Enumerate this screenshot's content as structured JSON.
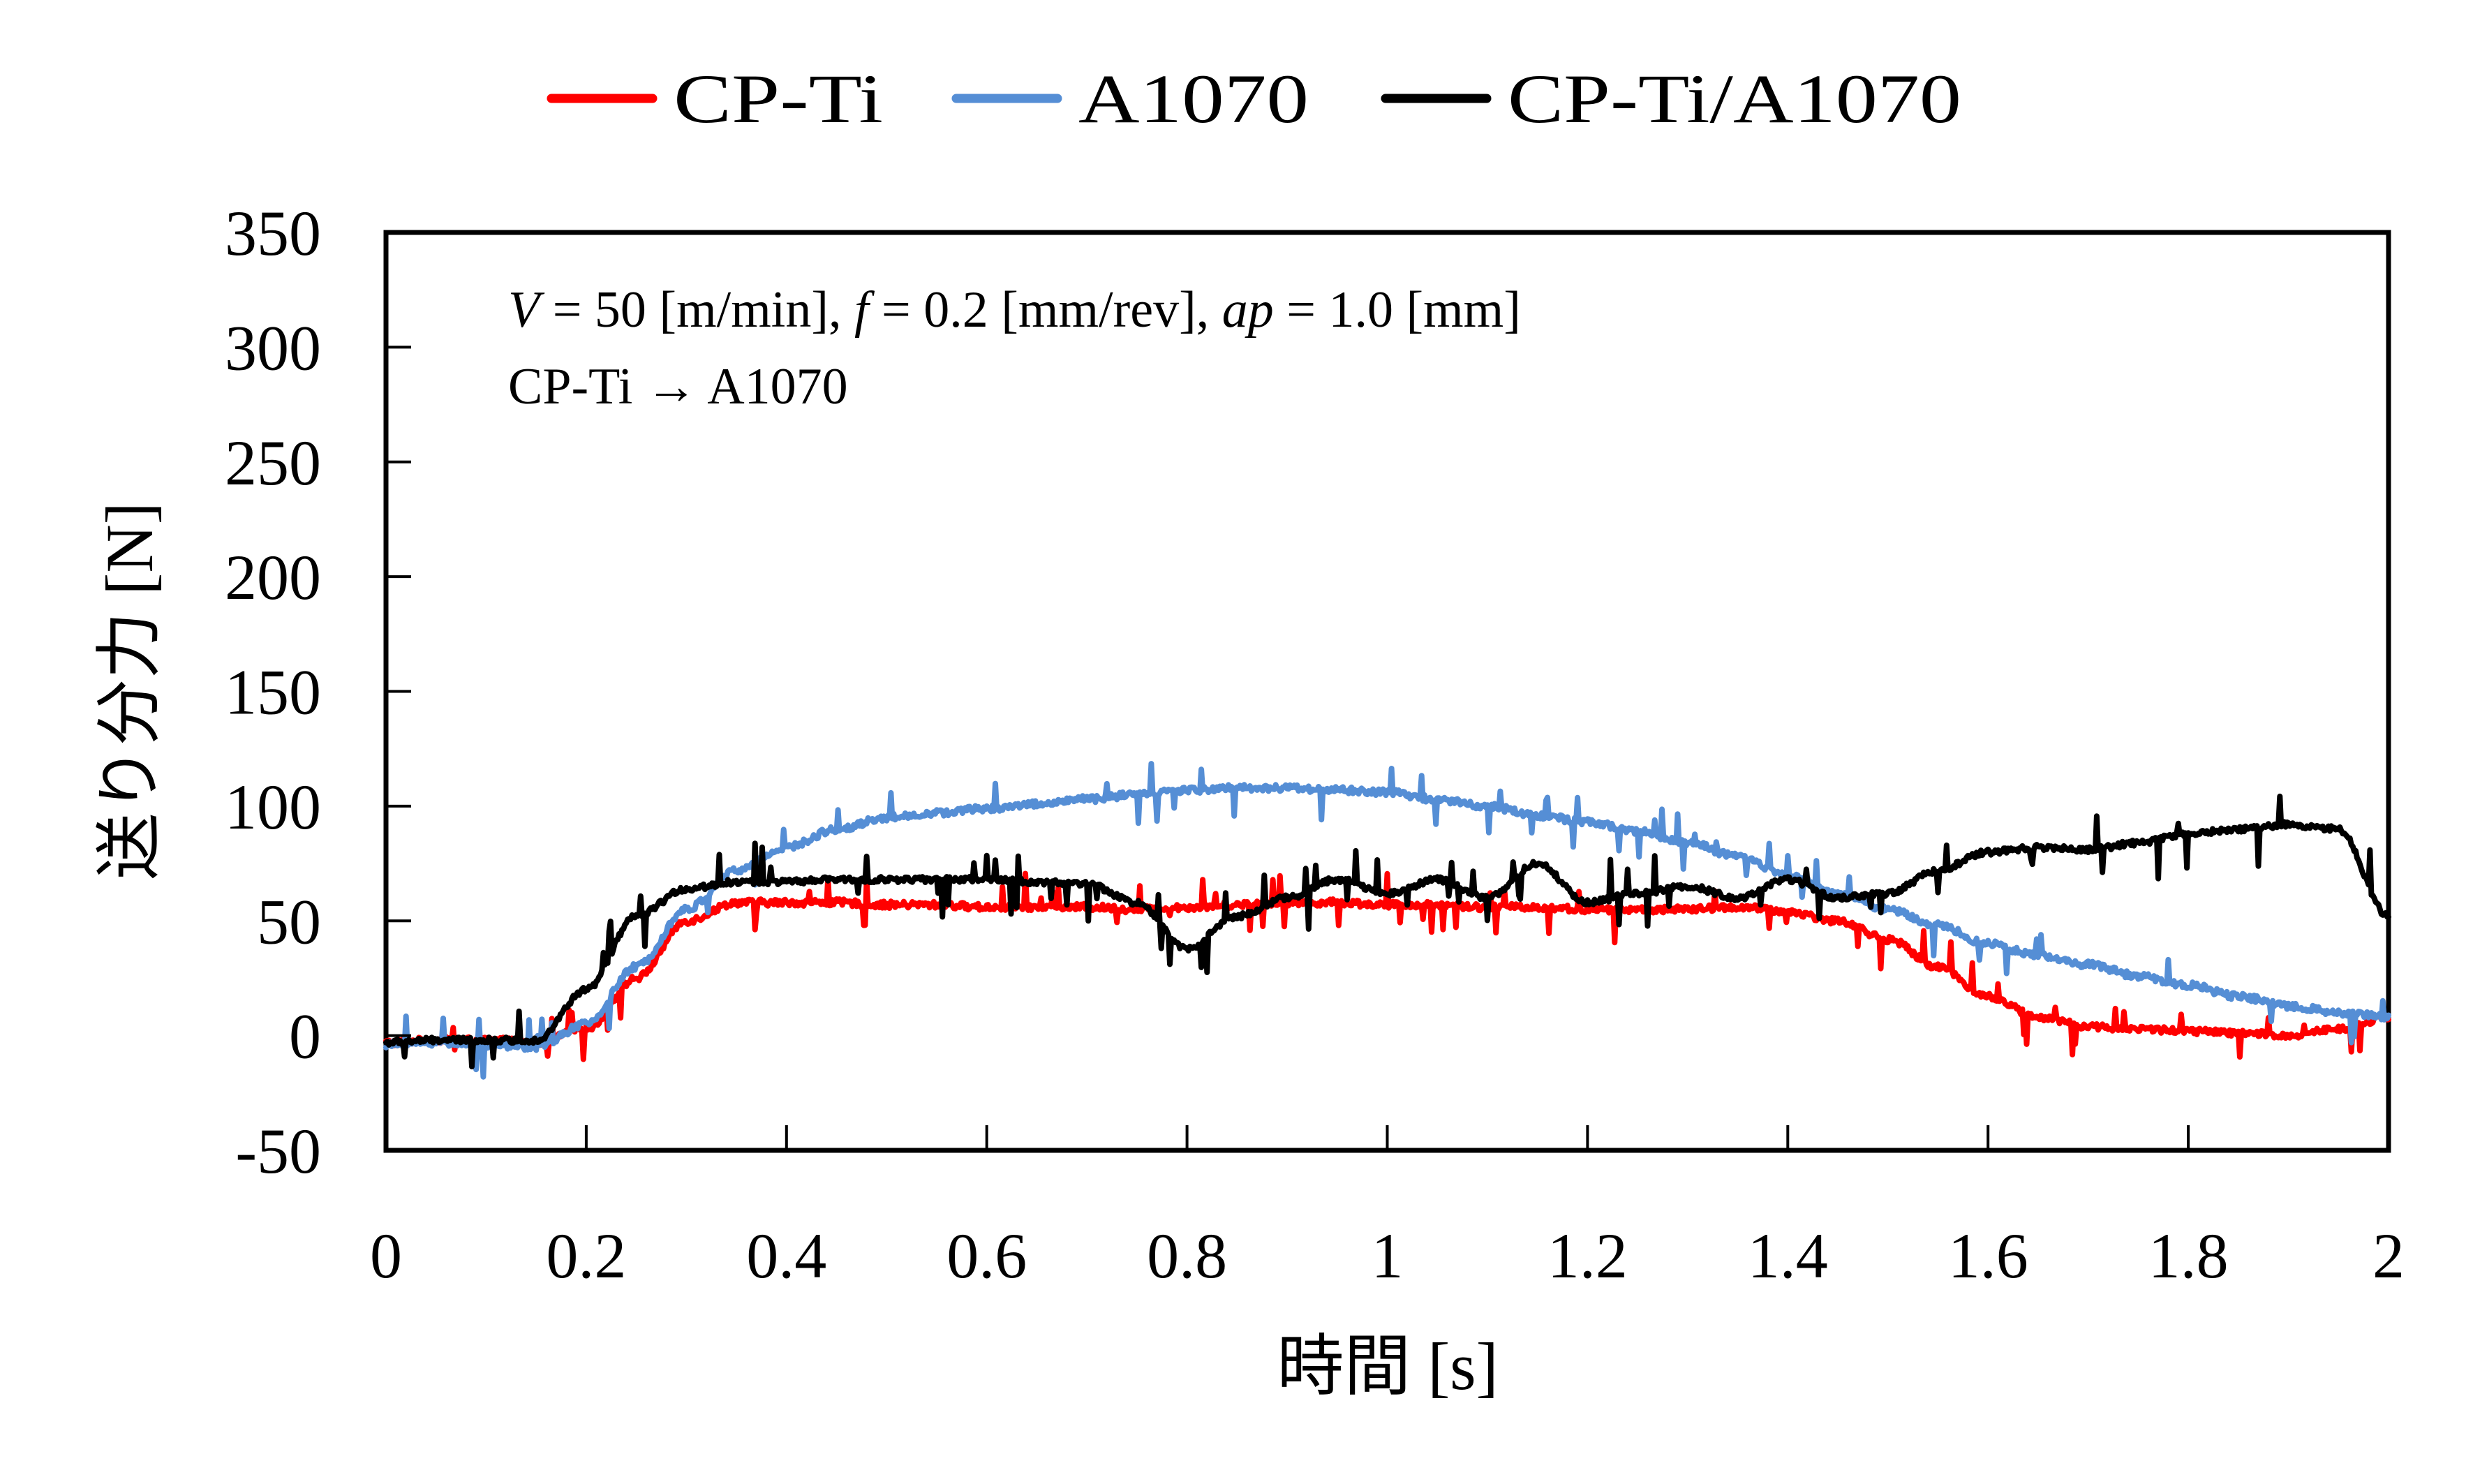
{
  "chart_data": {
    "type": "line",
    "title": "",
    "xlabel": "時間 [s]",
    "ylabel": "送り分力 [N]",
    "xlim": [
      0,
      2
    ],
    "ylim": [
      -50,
      350
    ],
    "x_ticks": [
      0,
      0.2,
      0.4,
      0.6,
      0.8,
      1,
      1.2,
      1.4,
      1.6,
      1.8,
      2
    ],
    "x_tick_labels": [
      "0",
      "0.2",
      "0.4",
      "0.6",
      "0.8",
      "1",
      "1.2",
      "1.4",
      "1.6",
      "1.8",
      "2"
    ],
    "y_ticks": [
      -50,
      0,
      50,
      100,
      150,
      200,
      250,
      300,
      350
    ],
    "y_tick_labels": [
      "-50",
      "0",
      "50",
      "100",
      "150",
      "200",
      "250",
      "300",
      "350"
    ],
    "grid": false,
    "legend_position": "top-center",
    "annotations": [
      "V = 50 [m/min], f = 0.2 [mm/rev], ap = 1.0 [mm]",
      "CP-Ti → A1070"
    ],
    "x": [
      0.0,
      0.05,
      0.1,
      0.15,
      0.2,
      0.25,
      0.3,
      0.35,
      0.4,
      0.45,
      0.5,
      0.55,
      0.6,
      0.65,
      0.7,
      0.75,
      0.8,
      0.85,
      0.9,
      0.95,
      1.0,
      1.05,
      1.1,
      1.15,
      1.2,
      1.25,
      1.3,
      1.35,
      1.4,
      1.45,
      1.5,
      1.55,
      1.6,
      1.65,
      1.7,
      1.75,
      1.8,
      1.85,
      1.9,
      1.95,
      2.0
    ],
    "series": [
      {
        "name": "CP-Ti",
        "color": "#ff0000",
        "values": [
          -3,
          -2,
          -2,
          -3,
          3,
          25,
          50,
          58,
          58,
          58,
          57,
          57,
          56,
          56,
          56,
          55,
          56,
          57,
          58,
          58,
          57,
          57,
          56,
          56,
          55,
          55,
          55,
          56,
          54,
          50,
          42,
          30,
          17,
          8,
          4,
          3,
          2,
          1,
          0,
          3,
          8
        ]
      },
      {
        "name": "A1070",
        "color": "#558ed5",
        "values": [
          -4,
          -3,
          -4,
          -5,
          5,
          30,
          55,
          72,
          82,
          90,
          95,
          97,
          99,
          101,
          103,
          105,
          107,
          108,
          108,
          107,
          106,
          103,
          100,
          96,
          93,
          89,
          84,
          78,
          70,
          62,
          55,
          48,
          40,
          35,
          31,
          26,
          22,
          17,
          13,
          10,
          8
        ]
      },
      {
        "name": "CP-Ti/A1070",
        "color": "#000000",
        "values": [
          -3,
          -2,
          -2,
          -2,
          20,
          52,
          64,
          67,
          67,
          68,
          68,
          68,
          68,
          67,
          66,
          58,
          38,
          52,
          60,
          68,
          62,
          68,
          60,
          75,
          58,
          62,
          65,
          60,
          68,
          60,
          62,
          72,
          80,
          82,
          81,
          84,
          88,
          90,
          92,
          90,
          52
        ]
      }
    ]
  },
  "legend": {
    "items": [
      {
        "label": "CP-Ti",
        "color": "#ff0000"
      },
      {
        "label": "A1070",
        "color": "#558ed5"
      },
      {
        "label": "CP-Ti/A1070",
        "color": "#000000"
      }
    ]
  },
  "annotation": {
    "line1": {
      "v_sym": "V",
      "v_text": " = 50 [m/min], ",
      "f_sym": "f",
      "f_text": " = 0.2 [mm/rev], ",
      "ap_sym": "ap",
      "ap_text": " = 1.0 [mm]"
    },
    "line2": "CP-Ti → A1070"
  },
  "axes": {
    "xlabel": "時間 [s]",
    "ylabel": "送り分力 [N]"
  }
}
